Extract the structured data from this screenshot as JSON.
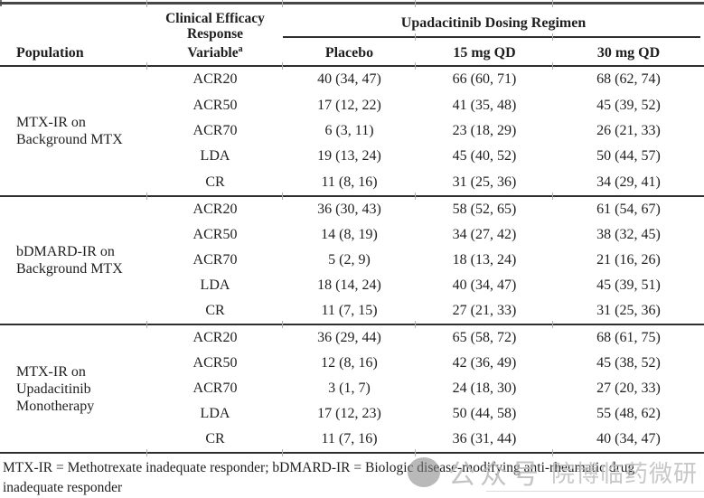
{
  "page": {
    "background": "#ffffff",
    "text_color": "#1f1f1f",
    "rule_color": "#2e2e2e",
    "watermark_color": "#c4c4c4"
  },
  "table": {
    "header": {
      "population": "Population",
      "response_variable_lines": [
        "Clinical Efficacy",
        "Response",
        "Variable"
      ],
      "response_variable_footnote_marker": "a",
      "spanning_title": "Upadacitinib Dosing Regimen",
      "dose_columns": [
        "Placebo",
        "15 mg QD",
        "30 mg QD"
      ]
    },
    "groups": [
      {
        "population": "MTX-IR on Background MTX",
        "rows": [
          {
            "variable": "ACR20",
            "values": [
              "40 (34, 47)",
              "66 (60, 71)",
              "68 (62, 74)"
            ]
          },
          {
            "variable": "ACR50",
            "values": [
              "17 (12, 22)",
              "41 (35, 48)",
              "45 (39, 52)"
            ]
          },
          {
            "variable": "ACR70",
            "values": [
              "6 (3, 11)",
              "23 (18, 29)",
              "26 (21, 33)"
            ]
          },
          {
            "variable": "LDA",
            "values": [
              "19 (13, 24)",
              "45 (40, 52)",
              "50 (44, 57)"
            ]
          },
          {
            "variable": "CR",
            "values": [
              "11 (8, 16)",
              "31 (25, 36)",
              "34 (29, 41)"
            ]
          }
        ]
      },
      {
        "population": "bDMARD-IR on Background MTX",
        "rows": [
          {
            "variable": "ACR20",
            "values": [
              "36 (30, 43)",
              "58 (52, 65)",
              "61 (54, 67)"
            ]
          },
          {
            "variable": "ACR50",
            "values": [
              "14 (8, 19)",
              "34 (27, 42)",
              "38 (32, 45)"
            ]
          },
          {
            "variable": "ACR70",
            "values": [
              "5 (2, 9)",
              "18 (13, 24)",
              "21 (16, 26)"
            ]
          },
          {
            "variable": "LDA",
            "values": [
              "18 (14, 24)",
              "40 (34, 47)",
              "45 (39, 51)"
            ]
          },
          {
            "variable": "CR",
            "values": [
              "11 (7, 15)",
              "27 (21, 33)",
              "31 (25, 36)"
            ]
          }
        ]
      },
      {
        "population": "MTX-IR on Upadacitinib Monotherapy",
        "rows": [
          {
            "variable": "ACR20",
            "values": [
              "36 (29, 44)",
              "65 (58, 72)",
              "68 (61, 75)"
            ]
          },
          {
            "variable": "ACR50",
            "values": [
              "12 (8, 16)",
              "42 (36, 49)",
              "45 (38, 52)"
            ]
          },
          {
            "variable": "ACR70",
            "values": [
              "3 (1, 7)",
              "24 (18, 30)",
              "27 (20, 33)"
            ]
          },
          {
            "variable": "LDA",
            "values": [
              "17 (12, 23)",
              "50 (44, 58)",
              "55 (48, 62)"
            ]
          },
          {
            "variable": "CR",
            "values": [
              "11 (7, 16)",
              "36 (31, 44)",
              "40 (34, 47)"
            ]
          }
        ]
      }
    ],
    "footnote": "MTX-IR = Methotrexate inadequate responder; bDMARD-IR = Biologic disease-modifying anti-rheumatic drug inadequate responder"
  },
  "watermark": {
    "label": "公众号",
    "name": "院博临药微研"
  }
}
